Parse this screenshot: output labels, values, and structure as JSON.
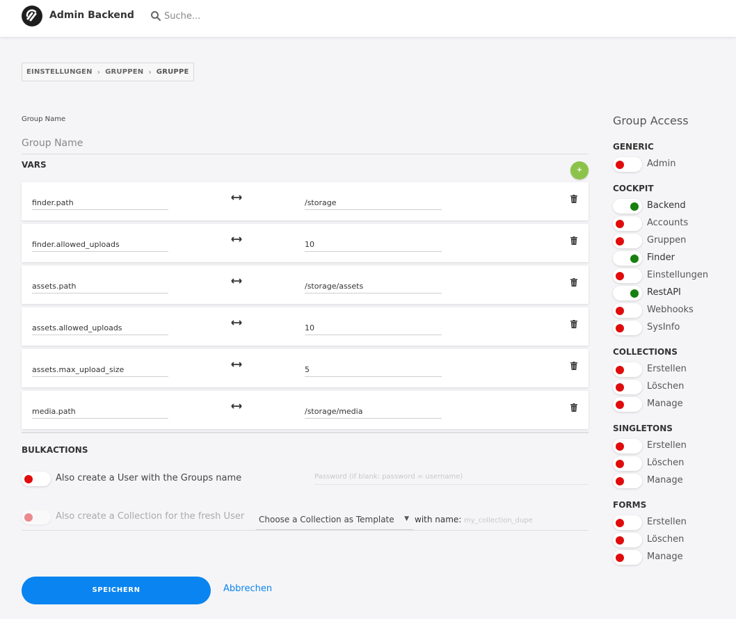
{
  "header": {
    "app_title": "Admin Backend",
    "search_placeholder": "Suche..."
  },
  "breadcrumb": [
    "EINSTELLUNGEN",
    "GRUPPEN",
    "GRUPPE"
  ],
  "form": {
    "group_name_label": "Group Name",
    "group_name_value": "",
    "group_name_placeholder": "Group Name",
    "vars_heading": "VARS",
    "add_button_label": "+",
    "vars": [
      {
        "key": "finder.path",
        "value": "/storage"
      },
      {
        "key": "finder.allowed_uploads",
        "value": "10"
      },
      {
        "key": "assets.path",
        "value": "/storage/assets"
      },
      {
        "key": "assets.allowed_uploads",
        "value": "10"
      },
      {
        "key": "assets.max_upload_size",
        "value": "5"
      },
      {
        "key": "media.path",
        "value": "/storage/media"
      }
    ]
  },
  "bulk": {
    "heading": "BULKACTIONS",
    "create_user_label": "Also create a User with the Groups name",
    "create_user_enabled": false,
    "password_placeholder": "Password (if blank: password = username)",
    "create_collection_label": "Also create a Collection for the fresh User",
    "create_collection_enabled": false,
    "collection_select_value": "Choose a Collection as Template",
    "with_name_label": "with name:",
    "name_placeholder": "my_collection_dupe"
  },
  "actions": {
    "save_label": "SPEICHERN",
    "cancel_label": "Abbrechen"
  },
  "access": {
    "title": "Group Access",
    "sections": [
      {
        "name": "GENERIC",
        "items": [
          {
            "label": "Admin",
            "enabled": false
          }
        ]
      },
      {
        "name": "COCKPIT",
        "items": [
          {
            "label": "Backend",
            "enabled": true
          },
          {
            "label": "Accounts",
            "enabled": false
          },
          {
            "label": "Gruppen",
            "enabled": false
          },
          {
            "label": "Finder",
            "enabled": true
          },
          {
            "label": "Einstellungen",
            "enabled": false
          },
          {
            "label": "RestAPI",
            "enabled": true
          },
          {
            "label": "Webhooks",
            "enabled": false
          },
          {
            "label": "SysInfo",
            "enabled": false
          }
        ]
      },
      {
        "name": "COLLECTIONS",
        "items": [
          {
            "label": "Erstellen",
            "enabled": false
          },
          {
            "label": "Löschen",
            "enabled": false
          },
          {
            "label": "Manage",
            "enabled": false
          }
        ]
      },
      {
        "name": "SINGLETONS",
        "items": [
          {
            "label": "Erstellen",
            "enabled": false
          },
          {
            "label": "Löschen",
            "enabled": false
          },
          {
            "label": "Manage",
            "enabled": false
          }
        ]
      },
      {
        "name": "FORMS",
        "items": [
          {
            "label": "Erstellen",
            "enabled": false
          },
          {
            "label": "Löschen",
            "enabled": false
          },
          {
            "label": "Manage",
            "enabled": false
          }
        ]
      }
    ]
  },
  "colors": {
    "primary": "#0a84f0",
    "toggle_on": "#17800f",
    "toggle_off": "#e00b0b",
    "add_button": "#8bc34a"
  }
}
